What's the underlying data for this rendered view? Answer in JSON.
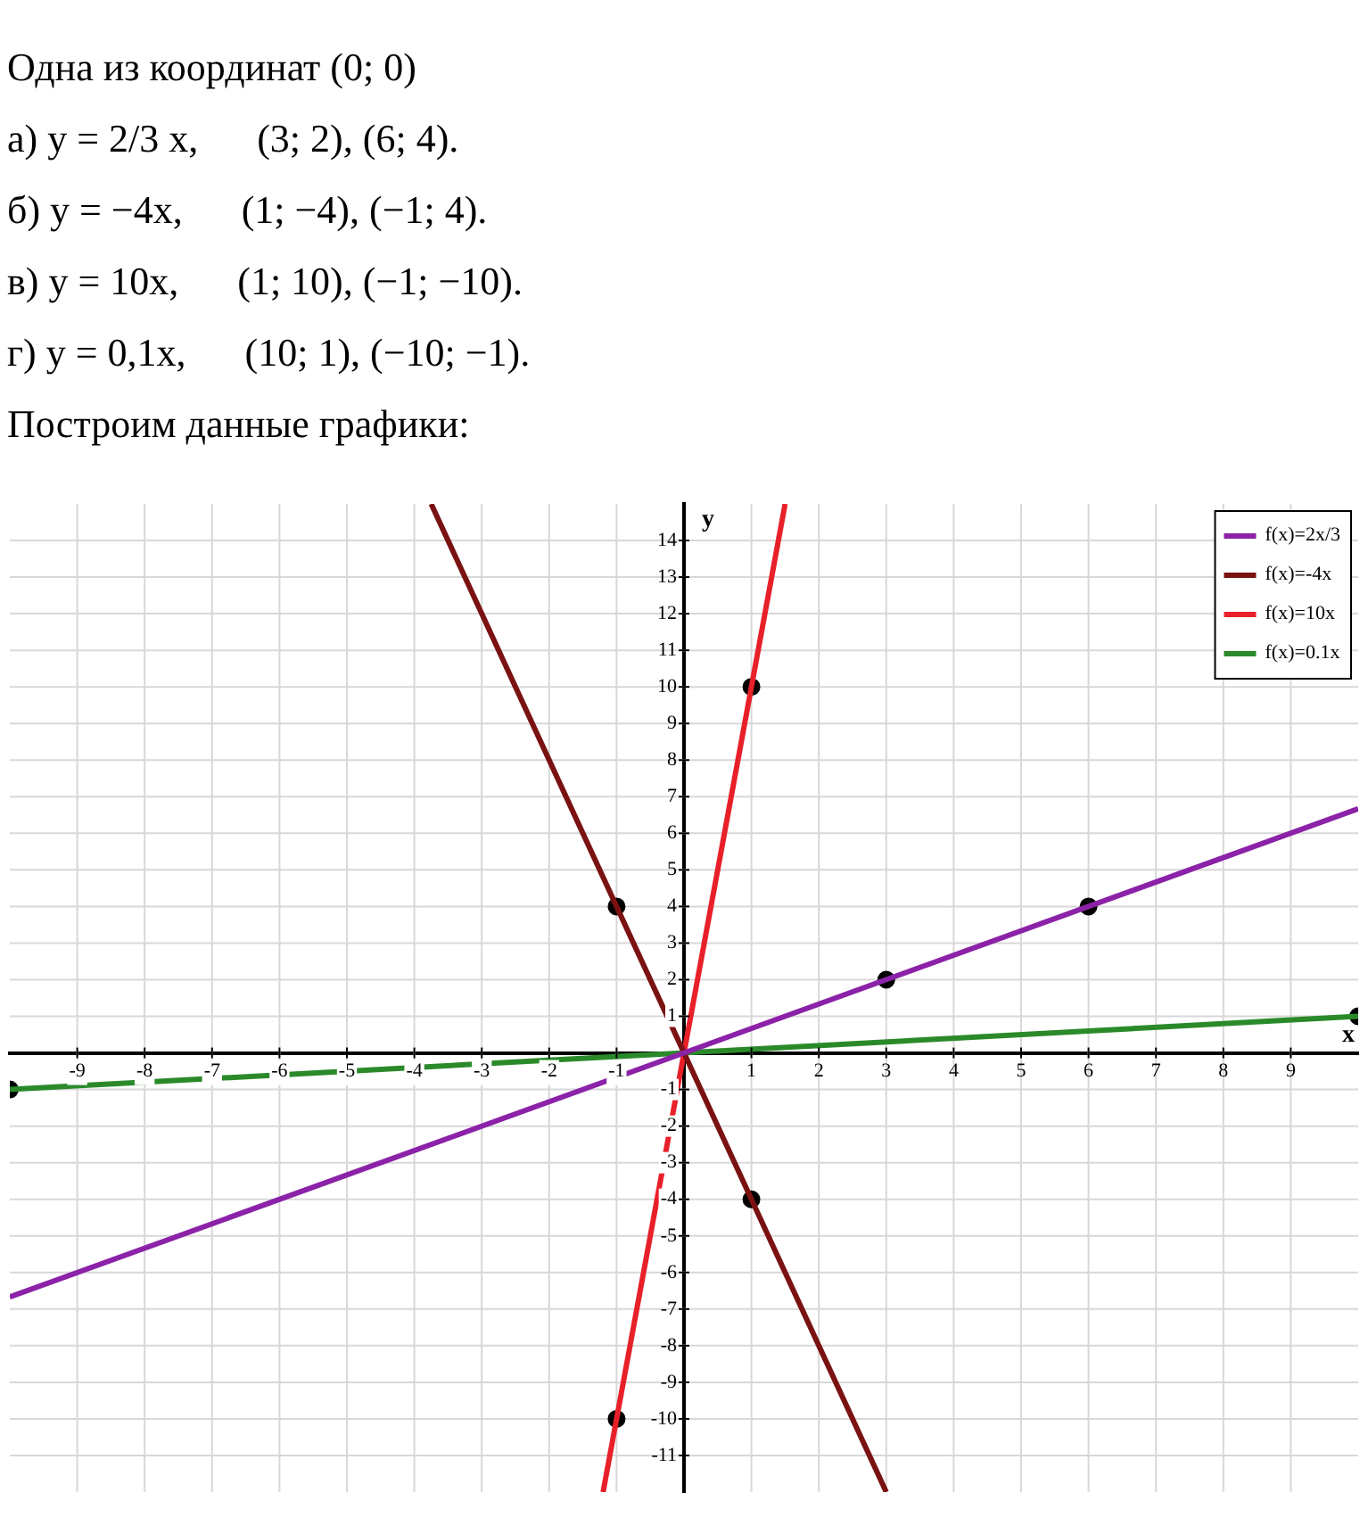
{
  "chart_data": {
    "type": "line",
    "xlabel": "x",
    "ylabel": "y",
    "annotations": [
      "Одна из координат (0; 0)",
      "а) y = 2/3 x,      (3; 2), (6; 4).",
      "б) y = −4x,      (1; −4), (−1; 4).",
      "в) y = 10x,      (1; 10), (−1; −10).",
      "г) y = 0,1x,      (10; 1), (−10; −1).",
      "Построим данные графики:"
    ],
    "xlim": [
      -10,
      10
    ],
    "ylim": [
      -12,
      15
    ],
    "xticks": [
      -9,
      -8,
      -7,
      -6,
      -5,
      -4,
      -3,
      -2,
      -1,
      1,
      2,
      3,
      4,
      5,
      6,
      7,
      8,
      9
    ],
    "yticks": [
      -11,
      -10,
      -9,
      -8,
      -7,
      -6,
      -5,
      -4,
      -3,
      -2,
      -1,
      1,
      2,
      3,
      4,
      5,
      6,
      7,
      8,
      9,
      10,
      11,
      12,
      13,
      14
    ],
    "grid": true,
    "legend": "top right",
    "marker": "none",
    "line_style": "solid",
    "series": [
      {
        "name": "f(x)=2x/3",
        "color": "#8b22a8",
        "type": "line",
        "x": [
          -10,
          10
        ],
        "values": [
          -6.67,
          6.67
        ]
      },
      {
        "name": "f(x)=-4x",
        "color": "#7a1212",
        "type": "line",
        "x": [
          -3.75,
          3
        ],
        "values": [
          15,
          -12
        ]
      },
      {
        "name": "f(x)=10x",
        "color": "#e8202a",
        "type": "line",
        "x": [
          -1.2,
          1.5
        ],
        "values": [
          -12,
          15
        ]
      },
      {
        "name": "f(x)=0.1x",
        "color": "#2a8a2a",
        "type": "line",
        "x": [
          -10,
          10
        ],
        "values": [
          -1,
          1
        ]
      },
      {
        "type": "scatter",
        "color": "#000000",
        "marker": "circle",
        "x": [
          3,
          6,
          1,
          -1,
          1,
          -1,
          10,
          -10
        ],
        "values": [
          2,
          4,
          -4,
          4,
          10,
          -10,
          1,
          -1
        ]
      }
    ]
  }
}
